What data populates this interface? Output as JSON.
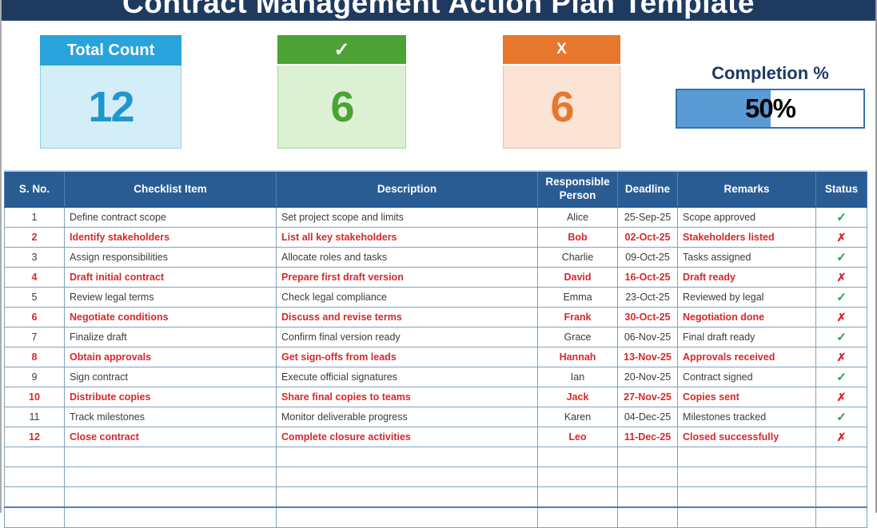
{
  "title": "Contract Management Action Plan Template",
  "summary_cards": {
    "total": {
      "label": "Total Count",
      "value": "12"
    },
    "completed": {
      "icon": "✓",
      "value": "6"
    },
    "not_completed": {
      "icon": "X",
      "value": "6"
    }
  },
  "completion": {
    "label": "Completion %",
    "value_label": "50%",
    "percent": 50
  },
  "colors": {
    "title_bar": "#1E3A5F",
    "table_header": "#2A5C94",
    "card_total_accent": "#29A3DC",
    "card_done_accent": "#4CA234",
    "card_pending_accent": "#E8772E",
    "progress_fill": "#5B9BD5",
    "progress_border": "#2E75B6",
    "flagged_text": "#D7282D",
    "status_check": "#21A24B",
    "status_cross": "#DB2428"
  },
  "table": {
    "columns": [
      "S. No.",
      "Checklist Item",
      "Description",
      "Responsible Person",
      "Deadline",
      "Remarks",
      "Status"
    ],
    "status_icons": {
      "done": "✓",
      "not_done": "✗"
    },
    "empty_row_count": 4,
    "rows": [
      {
        "s_no": "1",
        "item": "Define contract scope",
        "description": "Set project scope and limits",
        "person": "Alice",
        "deadline": "25-Sep-25",
        "remarks": "Scope approved",
        "status": "done",
        "flagged": false
      },
      {
        "s_no": "2",
        "item": "Identify stakeholders",
        "description": "List all key stakeholders",
        "person": "Bob",
        "deadline": "02-Oct-25",
        "remarks": "Stakeholders listed",
        "status": "not_done",
        "flagged": true
      },
      {
        "s_no": "3",
        "item": "Assign responsibilities",
        "description": "Allocate roles and tasks",
        "person": "Charlie",
        "deadline": "09-Oct-25",
        "remarks": "Tasks assigned",
        "status": "done",
        "flagged": false
      },
      {
        "s_no": "4",
        "item": "Draft initial contract",
        "description": "Prepare first draft version",
        "person": "David",
        "deadline": "16-Oct-25",
        "remarks": "Draft ready",
        "status": "not_done",
        "flagged": true
      },
      {
        "s_no": "5",
        "item": "Review legal terms",
        "description": "Check legal compliance",
        "person": "Emma",
        "deadline": "23-Oct-25",
        "remarks": "Reviewed by legal",
        "status": "done",
        "flagged": false
      },
      {
        "s_no": "6",
        "item": "Negotiate conditions",
        "description": "Discuss and revise terms",
        "person": "Frank",
        "deadline": "30-Oct-25",
        "remarks": "Negotiation done",
        "status": "not_done",
        "flagged": true
      },
      {
        "s_no": "7",
        "item": "Finalize draft",
        "description": "Confirm final version ready",
        "person": "Grace",
        "deadline": "06-Nov-25",
        "remarks": "Final draft ready",
        "status": "done",
        "flagged": false
      },
      {
        "s_no": "8",
        "item": "Obtain approvals",
        "description": "Get sign-offs from leads",
        "person": "Hannah",
        "deadline": "13-Nov-25",
        "remarks": "Approvals received",
        "status": "not_done",
        "flagged": true
      },
      {
        "s_no": "9",
        "item": "Sign contract",
        "description": "Execute official signatures",
        "person": "Ian",
        "deadline": "20-Nov-25",
        "remarks": "Contract signed",
        "status": "done",
        "flagged": false
      },
      {
        "s_no": "10",
        "item": "Distribute copies",
        "description": "Share final copies to teams",
        "person": "Jack",
        "deadline": "27-Nov-25",
        "remarks": "Copies sent",
        "status": "not_done",
        "flagged": true
      },
      {
        "s_no": "11",
        "item": "Track milestones",
        "description": "Monitor deliverable progress",
        "person": "Karen",
        "deadline": "04-Dec-25",
        "remarks": "Milestones tracked",
        "status": "done",
        "flagged": false
      },
      {
        "s_no": "12",
        "item": "Close contract",
        "description": "Complete closure activities",
        "person": "Leo",
        "deadline": "11-Dec-25",
        "remarks": "Closed successfully",
        "status": "not_done",
        "flagged": true
      }
    ]
  }
}
